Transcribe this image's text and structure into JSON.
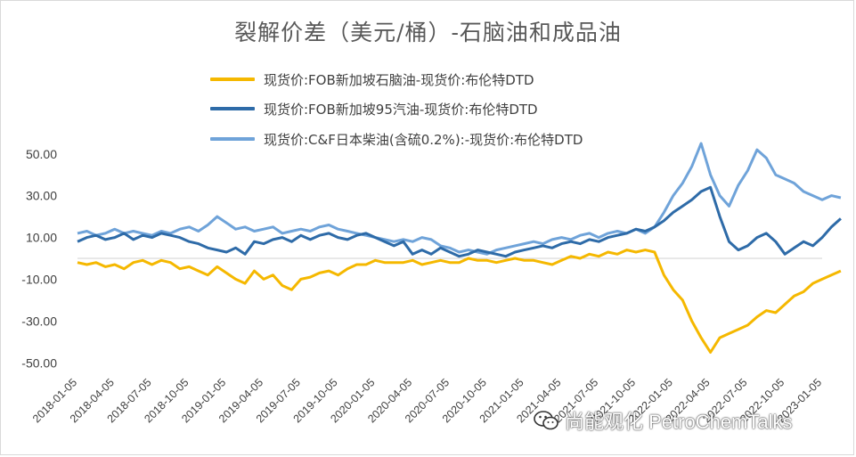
{
  "chart_data": {
    "type": "line",
    "title": "裂解价差（美元/桶）-石脑油和成品油",
    "xlabel": "",
    "ylabel": "",
    "ylim": [
      -50,
      60
    ],
    "yticks": [
      "50.00",
      "30.00",
      "10.00",
      "-10.00",
      "-30.00",
      "-50.00"
    ],
    "ytick_values": [
      50,
      30,
      10,
      -10,
      -30,
      -50
    ],
    "xticks": [
      "2018-01-05",
      "2018-04-05",
      "2018-07-05",
      "2018-10-05",
      "2019-01-05",
      "2019-04-05",
      "2019-07-05",
      "2019-10-05",
      "2020-01-05",
      "2020-04-05",
      "2020-07-05",
      "2020-10-05",
      "2021-01-05",
      "2021-04-05",
      "2021-07-05",
      "2021-10-05",
      "2022-01-05",
      "2022-04-05",
      "2022-07-05",
      "2022-10-05",
      "2023-01-05"
    ],
    "legend_position": "top",
    "grid": false,
    "series": [
      {
        "name": "现货价:FOB新加坡石脑油-现货价:布伦特DTD",
        "color": "#F5B800",
        "points": [
          [
            0,
            -2
          ],
          [
            0.5,
            -3
          ],
          [
            1,
            -2
          ],
          [
            1.5,
            -4
          ],
          [
            2,
            -3
          ],
          [
            2.5,
            -5
          ],
          [
            3,
            -2
          ],
          [
            3.5,
            -1
          ],
          [
            4,
            -3
          ],
          [
            4.5,
            -1
          ],
          [
            5,
            -2
          ],
          [
            5.5,
            -5
          ],
          [
            6,
            -4
          ],
          [
            6.5,
            -6
          ],
          [
            7,
            -8
          ],
          [
            7.5,
            -4
          ],
          [
            8,
            -7
          ],
          [
            8.5,
            -10
          ],
          [
            9,
            -12
          ],
          [
            9.5,
            -6
          ],
          [
            10,
            -10
          ],
          [
            10.5,
            -8
          ],
          [
            11,
            -13
          ],
          [
            11.5,
            -15
          ],
          [
            12,
            -10
          ],
          [
            12.5,
            -9
          ],
          [
            13,
            -7
          ],
          [
            13.5,
            -6
          ],
          [
            14,
            -8
          ],
          [
            14.5,
            -5
          ],
          [
            15,
            -3
          ],
          [
            15.5,
            -3
          ],
          [
            16,
            -1
          ],
          [
            16.5,
            -2
          ],
          [
            17,
            -2
          ],
          [
            17.5,
            -2
          ],
          [
            18,
            -1
          ],
          [
            18.5,
            -3
          ],
          [
            19,
            -2
          ],
          [
            19.5,
            -1
          ],
          [
            20,
            -2
          ],
          [
            20.5,
            -2
          ],
          [
            21,
            0
          ],
          [
            21.5,
            -1
          ],
          [
            22,
            -1
          ],
          [
            22.5,
            -2
          ],
          [
            23,
            -1
          ],
          [
            23.5,
            0
          ],
          [
            24,
            -1
          ],
          [
            24.5,
            -1
          ],
          [
            25,
            -2
          ],
          [
            25.5,
            -3
          ],
          [
            26,
            -1
          ],
          [
            26.5,
            1
          ],
          [
            27,
            0
          ],
          [
            27.5,
            2
          ],
          [
            28,
            1
          ],
          [
            28.5,
            3
          ],
          [
            29,
            2
          ],
          [
            29.5,
            4
          ],
          [
            30,
            3
          ],
          [
            30.5,
            4
          ],
          [
            31,
            3
          ],
          [
            31.5,
            -8
          ],
          [
            32,
            -15
          ],
          [
            32.5,
            -20
          ],
          [
            33,
            -30
          ],
          [
            33.5,
            -38
          ],
          [
            34,
            -45
          ],
          [
            34.5,
            -38
          ],
          [
            35,
            -36
          ],
          [
            35.5,
            -34
          ],
          [
            36,
            -32
          ],
          [
            36.5,
            -28
          ],
          [
            37,
            -25
          ],
          [
            37.5,
            -26
          ],
          [
            38,
            -22
          ],
          [
            38.5,
            -18
          ],
          [
            39,
            -16
          ],
          [
            39.5,
            -12
          ],
          [
            40,
            -10
          ],
          [
            40.5,
            -8
          ],
          [
            41,
            -6
          ]
        ]
      },
      {
        "name": "现货价:FOB新加坡95汽油-现货价:布伦特DTD",
        "color": "#2E6BA8",
        "points": [
          [
            0,
            8
          ],
          [
            0.5,
            10
          ],
          [
            1,
            11
          ],
          [
            1.5,
            9
          ],
          [
            2,
            10
          ],
          [
            2.5,
            12
          ],
          [
            3,
            9
          ],
          [
            3.5,
            11
          ],
          [
            4,
            10
          ],
          [
            4.5,
            12
          ],
          [
            5,
            11
          ],
          [
            5.5,
            10
          ],
          [
            6,
            8
          ],
          [
            6.5,
            7
          ],
          [
            7,
            5
          ],
          [
            7.5,
            4
          ],
          [
            8,
            3
          ],
          [
            8.5,
            5
          ],
          [
            9,
            2
          ],
          [
            9.5,
            8
          ],
          [
            10,
            7
          ],
          [
            10.5,
            9
          ],
          [
            11,
            10
          ],
          [
            11.5,
            8
          ],
          [
            12,
            11
          ],
          [
            12.5,
            9
          ],
          [
            13,
            11
          ],
          [
            13.5,
            12
          ],
          [
            14,
            10
          ],
          [
            14.5,
            9
          ],
          [
            15,
            11
          ],
          [
            15.5,
            12
          ],
          [
            16,
            10
          ],
          [
            16.5,
            8
          ],
          [
            17,
            6
          ],
          [
            17.5,
            8
          ],
          [
            18,
            2
          ],
          [
            18.5,
            4
          ],
          [
            19,
            2
          ],
          [
            19.5,
            5
          ],
          [
            20,
            3
          ],
          [
            20.5,
            1
          ],
          [
            21,
            2
          ],
          [
            21.5,
            4
          ],
          [
            22,
            3
          ],
          [
            22.5,
            2
          ],
          [
            23,
            1
          ],
          [
            23.5,
            3
          ],
          [
            24,
            4
          ],
          [
            24.5,
            5
          ],
          [
            25,
            6
          ],
          [
            25.5,
            5
          ],
          [
            26,
            7
          ],
          [
            26.5,
            8
          ],
          [
            27,
            7
          ],
          [
            27.5,
            9
          ],
          [
            28,
            8
          ],
          [
            28.5,
            10
          ],
          [
            29,
            11
          ],
          [
            29.5,
            12
          ],
          [
            30,
            14
          ],
          [
            30.5,
            13
          ],
          [
            31,
            15
          ],
          [
            31.5,
            18
          ],
          [
            32,
            22
          ],
          [
            32.5,
            25
          ],
          [
            33,
            28
          ],
          [
            33.5,
            32
          ],
          [
            34,
            34
          ],
          [
            34.5,
            20
          ],
          [
            35,
            8
          ],
          [
            35.5,
            4
          ],
          [
            36,
            6
          ],
          [
            36.5,
            10
          ],
          [
            37,
            12
          ],
          [
            37.5,
            8
          ],
          [
            38,
            2
          ],
          [
            38.5,
            5
          ],
          [
            39,
            8
          ],
          [
            39.5,
            6
          ],
          [
            40,
            10
          ],
          [
            40.5,
            15
          ],
          [
            41,
            19
          ]
        ]
      },
      {
        "name": "现货价:C&F日本柴油(含硫0.2%):-现货价:布伦特DTD",
        "color": "#6FA3D9",
        "points": [
          [
            0,
            12
          ],
          [
            0.5,
            13
          ],
          [
            1,
            11
          ],
          [
            1.5,
            12
          ],
          [
            2,
            14
          ],
          [
            2.5,
            12
          ],
          [
            3,
            13
          ],
          [
            3.5,
            12
          ],
          [
            4,
            11
          ],
          [
            4.5,
            13
          ],
          [
            5,
            12
          ],
          [
            5.5,
            14
          ],
          [
            6,
            15
          ],
          [
            6.5,
            13
          ],
          [
            7,
            16
          ],
          [
            7.5,
            20
          ],
          [
            8,
            17
          ],
          [
            8.5,
            14
          ],
          [
            9,
            15
          ],
          [
            9.5,
            13
          ],
          [
            10,
            14
          ],
          [
            10.5,
            15
          ],
          [
            11,
            12
          ],
          [
            11.5,
            13
          ],
          [
            12,
            14
          ],
          [
            12.5,
            13
          ],
          [
            13,
            15
          ],
          [
            13.5,
            16
          ],
          [
            14,
            14
          ],
          [
            14.5,
            13
          ],
          [
            15,
            12
          ],
          [
            15.5,
            11
          ],
          [
            16,
            10
          ],
          [
            16.5,
            9
          ],
          [
            17,
            8
          ],
          [
            17.5,
            9
          ],
          [
            18,
            8
          ],
          [
            18.5,
            10
          ],
          [
            19,
            9
          ],
          [
            19.5,
            6
          ],
          [
            20,
            5
          ],
          [
            20.5,
            3
          ],
          [
            21,
            4
          ],
          [
            21.5,
            3
          ],
          [
            22,
            2
          ],
          [
            22.5,
            4
          ],
          [
            23,
            5
          ],
          [
            23.5,
            6
          ],
          [
            24,
            7
          ],
          [
            24.5,
            8
          ],
          [
            25,
            7
          ],
          [
            25.5,
            9
          ],
          [
            26,
            10
          ],
          [
            26.5,
            9
          ],
          [
            27,
            11
          ],
          [
            27.5,
            12
          ],
          [
            28,
            10
          ],
          [
            28.5,
            12
          ],
          [
            29,
            13
          ],
          [
            29.5,
            12
          ],
          [
            30,
            14
          ],
          [
            30.5,
            12
          ],
          [
            31,
            15
          ],
          [
            31.5,
            22
          ],
          [
            32,
            30
          ],
          [
            32.5,
            36
          ],
          [
            33,
            44
          ],
          [
            33.5,
            55
          ],
          [
            34,
            40
          ],
          [
            34.5,
            30
          ],
          [
            35,
            25
          ],
          [
            35.5,
            35
          ],
          [
            36,
            42
          ],
          [
            36.5,
            52
          ],
          [
            37,
            48
          ],
          [
            37.5,
            40
          ],
          [
            38,
            38
          ],
          [
            38.5,
            36
          ],
          [
            39,
            32
          ],
          [
            39.5,
            30
          ],
          [
            40,
            28
          ],
          [
            40.5,
            30
          ],
          [
            41,
            29
          ]
        ]
      }
    ]
  },
  "watermark": {
    "text": "尚能观化 PetroChemTalks",
    "icon": "wechat-icon"
  }
}
